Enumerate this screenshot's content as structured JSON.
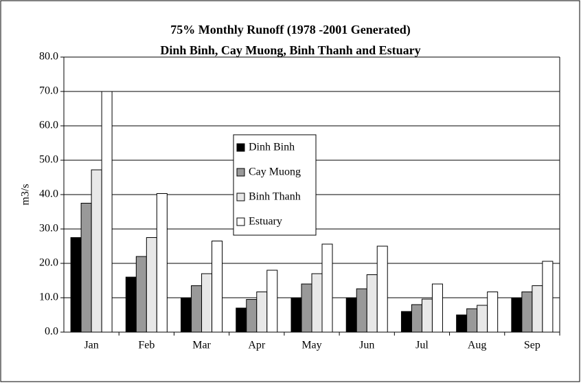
{
  "chart_data": {
    "type": "bar",
    "title": "75% Monthly Runoff (1978 -2001 Generated)",
    "subtitle": "Dinh Binh, Cay Muong, Binh Thanh and Estuary",
    "y_label": "m3/s",
    "categories": [
      "Jan",
      "Feb",
      "Mar",
      "Apr",
      "May",
      "Jun",
      "Jul",
      "Aug",
      "Sep"
    ],
    "series": [
      {
        "name": "Dinh Binh",
        "color": "#000000",
        "values": [
          27.5,
          16,
          10,
          7,
          10,
          9.8,
          6,
          5,
          10
        ]
      },
      {
        "name": "Cay Muong",
        "color": "#999999",
        "values": [
          37.5,
          22,
          13.5,
          9.5,
          14,
          12.6,
          8,
          6.8,
          11.7
        ]
      },
      {
        "name": "Binh Thanh",
        "color": "#e8e8e8",
        "values": [
          47.2,
          27.5,
          17,
          11.7,
          17,
          16.7,
          9.6,
          7.8,
          13.5
        ]
      },
      {
        "name": "Estuary",
        "color": "#ffffff",
        "values": [
          70,
          40.3,
          26.5,
          18,
          25.6,
          25,
          14,
          11.7,
          20.6
        ]
      }
    ],
    "ylim": [
      0,
      80
    ],
    "yticks": [
      {
        "value": 0,
        "label": "0.0"
      },
      {
        "value": 10,
        "label": "10.0"
      },
      {
        "value": 20,
        "label": "20.0"
      },
      {
        "value": 30,
        "label": "30.0"
      },
      {
        "value": 40,
        "label": "40.0"
      },
      {
        "value": 50,
        "label": "50.0"
      },
      {
        "value": 60,
        "label": "60.0"
      },
      {
        "value": 70,
        "label": "70.0"
      },
      {
        "value": 80,
        "label": "80.0"
      }
    ],
    "grid": true
  }
}
